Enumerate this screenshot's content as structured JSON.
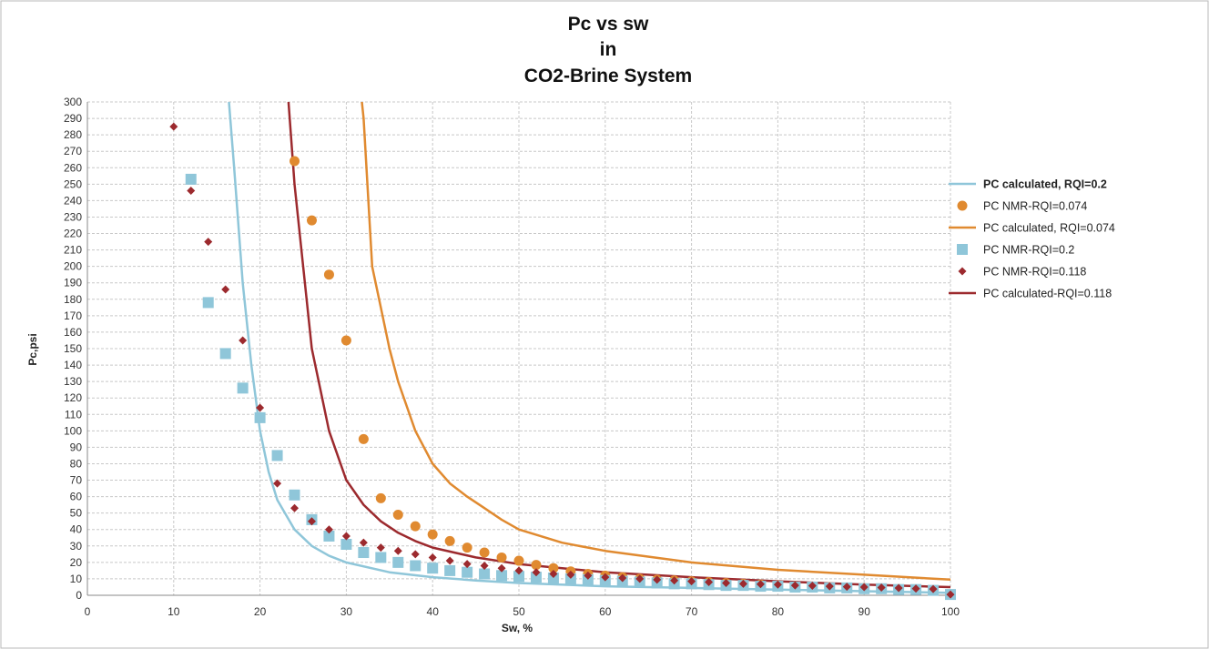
{
  "chart_data": {
    "type": "scatter",
    "title_lines": [
      "Pc vs sw",
      "in",
      "CO2-Brine System"
    ],
    "xlabel": "Sw, %",
    "ylabel": "Pc,psi",
    "xlim": [
      0,
      100
    ],
    "ylim": [
      0,
      300
    ],
    "xticks": [
      0,
      10,
      20,
      30,
      40,
      50,
      60,
      70,
      80,
      90,
      100
    ],
    "yticks": [
      0,
      10,
      20,
      30,
      40,
      50,
      60,
      70,
      80,
      90,
      100,
      110,
      120,
      130,
      140,
      150,
      160,
      170,
      180,
      190,
      200,
      210,
      220,
      230,
      240,
      250,
      260,
      270,
      280,
      290,
      300
    ],
    "grid": true,
    "legend_position": "right",
    "colors": {
      "light_blue": "#8fc6d9",
      "orange": "#e08a30",
      "dark_red": "#9c2a2e"
    },
    "series": [
      {
        "name": "PC calculated, RQI=0.2",
        "kind": "line",
        "color": "#8fc6d9",
        "legend_bold": true,
        "points": [
          [
            16.4,
            300
          ],
          [
            17,
            260
          ],
          [
            18,
            190
          ],
          [
            19,
            140
          ],
          [
            20,
            100
          ],
          [
            21,
            75
          ],
          [
            22,
            58
          ],
          [
            24,
            40
          ],
          [
            26,
            30
          ],
          [
            28,
            24
          ],
          [
            30,
            20
          ],
          [
            35,
            14
          ],
          [
            40,
            11
          ],
          [
            45,
            9
          ],
          [
            50,
            7.5
          ],
          [
            60,
            5.5
          ],
          [
            70,
            4.5
          ],
          [
            80,
            3.5
          ],
          [
            90,
            2.5
          ],
          [
            100,
            1.5
          ]
        ]
      },
      {
        "name": "PC NMR-RQI=0.074",
        "kind": "marker",
        "marker": "circle",
        "color": "#e08a30",
        "points": [
          [
            24,
            264
          ],
          [
            26,
            228
          ],
          [
            28,
            195
          ],
          [
            30,
            155
          ],
          [
            32,
            95
          ],
          [
            34,
            59
          ],
          [
            36,
            49
          ],
          [
            38,
            42
          ],
          [
            40,
            37
          ],
          [
            42,
            33
          ],
          [
            44,
            29
          ],
          [
            46,
            26
          ],
          [
            48,
            23
          ],
          [
            50,
            21
          ],
          [
            52,
            18.5
          ],
          [
            54,
            16.5
          ],
          [
            56,
            14.5
          ],
          [
            58,
            13
          ],
          [
            60,
            12
          ],
          [
            62,
            11
          ],
          [
            64,
            10
          ],
          [
            66,
            9.5
          ],
          [
            68,
            9
          ],
          [
            70,
            8.5
          ],
          [
            72,
            8
          ],
          [
            74,
            7.5
          ],
          [
            76,
            7
          ],
          [
            78,
            6.5
          ],
          [
            80,
            6
          ],
          [
            82,
            5.5
          ],
          [
            84,
            5.2
          ],
          [
            86,
            5
          ],
          [
            88,
            4.7
          ],
          [
            90,
            4.4
          ],
          [
            92,
            4.1
          ],
          [
            94,
            3.8
          ],
          [
            96,
            3.5
          ],
          [
            98,
            3.2
          ],
          [
            100,
            0.5
          ]
        ]
      },
      {
        "name": "PC calculated, RQI=0.074",
        "kind": "line",
        "color": "#e08a30",
        "points": [
          [
            31.8,
            300
          ],
          [
            32,
            290
          ],
          [
            33,
            200
          ],
          [
            34,
            175
          ],
          [
            35,
            150
          ],
          [
            36,
            130
          ],
          [
            38,
            100
          ],
          [
            40,
            80
          ],
          [
            42,
            68
          ],
          [
            44,
            60
          ],
          [
            46,
            53
          ],
          [
            48,
            46
          ],
          [
            50,
            40
          ],
          [
            55,
            32
          ],
          [
            60,
            27
          ],
          [
            70,
            20
          ],
          [
            80,
            15.5
          ],
          [
            90,
            12.5
          ],
          [
            100,
            9.5
          ]
        ]
      },
      {
        "name": "PC NMR-RQI=0.2",
        "kind": "marker",
        "marker": "square",
        "color": "#8fc6d9",
        "points": [
          [
            12,
            253
          ],
          [
            14,
            178
          ],
          [
            16,
            147
          ],
          [
            18,
            126
          ],
          [
            20,
            108
          ],
          [
            22,
            85
          ],
          [
            24,
            61
          ],
          [
            26,
            46
          ],
          [
            28,
            36
          ],
          [
            30,
            31
          ],
          [
            32,
            26
          ],
          [
            34,
            23
          ],
          [
            36,
            20
          ],
          [
            38,
            18
          ],
          [
            40,
            16.5
          ],
          [
            42,
            15
          ],
          [
            44,
            14
          ],
          [
            46,
            13
          ],
          [
            48,
            12
          ],
          [
            50,
            11.5
          ],
          [
            52,
            11
          ],
          [
            54,
            10.5
          ],
          [
            56,
            10
          ],
          [
            58,
            9.5
          ],
          [
            60,
            9
          ],
          [
            62,
            8.5
          ],
          [
            64,
            8
          ],
          [
            66,
            7.5
          ],
          [
            68,
            7
          ],
          [
            70,
            7
          ],
          [
            72,
            6.5
          ],
          [
            74,
            6
          ],
          [
            76,
            6
          ],
          [
            78,
            5.5
          ],
          [
            80,
            5.5
          ],
          [
            82,
            5
          ],
          [
            84,
            5
          ],
          [
            86,
            4.5
          ],
          [
            88,
            4.5
          ],
          [
            90,
            4
          ],
          [
            92,
            4
          ],
          [
            94,
            3.5
          ],
          [
            96,
            3.5
          ],
          [
            98,
            3
          ],
          [
            100,
            0.5
          ]
        ]
      },
      {
        "name": "PC NMR-RQI=0.118",
        "kind": "marker",
        "marker": "diamond",
        "color": "#9c2a2e",
        "points": [
          [
            10,
            285
          ],
          [
            12,
            246
          ],
          [
            14,
            215
          ],
          [
            16,
            186
          ],
          [
            18,
            155
          ],
          [
            20,
            114
          ],
          [
            22,
            68
          ],
          [
            24,
            53
          ],
          [
            26,
            45
          ],
          [
            28,
            40
          ],
          [
            30,
            36
          ],
          [
            32,
            32
          ],
          [
            34,
            29
          ],
          [
            36,
            27
          ],
          [
            38,
            25
          ],
          [
            40,
            23
          ],
          [
            42,
            21
          ],
          [
            44,
            19
          ],
          [
            46,
            18
          ],
          [
            48,
            16.5
          ],
          [
            50,
            15
          ],
          [
            52,
            14
          ],
          [
            54,
            13
          ],
          [
            56,
            12.5
          ],
          [
            58,
            12
          ],
          [
            60,
            11
          ],
          [
            62,
            10.5
          ],
          [
            64,
            10
          ],
          [
            66,
            9.5
          ],
          [
            68,
            9
          ],
          [
            70,
            8.5
          ],
          [
            72,
            8
          ],
          [
            74,
            7.5
          ],
          [
            76,
            7
          ],
          [
            78,
            6.8
          ],
          [
            80,
            6.5
          ],
          [
            82,
            6
          ],
          [
            84,
            5.8
          ],
          [
            86,
            5.5
          ],
          [
            88,
            5.2
          ],
          [
            90,
            5
          ],
          [
            92,
            4.7
          ],
          [
            94,
            4.4
          ],
          [
            96,
            4.1
          ],
          [
            98,
            3.8
          ],
          [
            100,
            0.5
          ]
        ]
      },
      {
        "name": "PC calculated-RQI=0.118",
        "kind": "line",
        "color": "#9c2a2e",
        "points": [
          [
            23.3,
            300
          ],
          [
            24,
            250
          ],
          [
            25,
            200
          ],
          [
            26,
            150
          ],
          [
            27,
            125
          ],
          [
            28,
            100
          ],
          [
            30,
            70
          ],
          [
            32,
            55
          ],
          [
            34,
            45
          ],
          [
            36,
            38
          ],
          [
            38,
            33
          ],
          [
            40,
            29
          ],
          [
            45,
            23
          ],
          [
            50,
            19
          ],
          [
            60,
            14
          ],
          [
            70,
            11
          ],
          [
            80,
            8.5
          ],
          [
            90,
            6.5
          ],
          [
            100,
            5
          ]
        ]
      }
    ]
  }
}
